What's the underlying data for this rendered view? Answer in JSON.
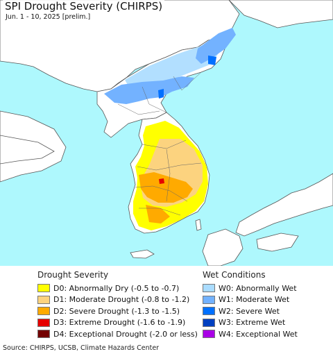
{
  "header": {
    "title": "SPI Drought Severity (CHIRPS)",
    "subtitle": "Jun. 1 - 10, 2025 [prelim.]"
  },
  "legend": {
    "drought": {
      "heading": "Drought Severity",
      "items": [
        {
          "label": "D0: Abnormally Dry (-0.5 to -0.7)",
          "color": "#ffff00"
        },
        {
          "label": "D1: Moderate Drought (-0.8 to -1.2)",
          "color": "#fcd37f"
        },
        {
          "label": "D2: Severe Drought (-1.3 to -1.5)",
          "color": "#ffaa00"
        },
        {
          "label": "D3: Extreme Drought (-1.6 to -1.9)",
          "color": "#e60000"
        },
        {
          "label": "D4: Exceptional Drought (-2.0 or less)",
          "color": "#730000"
        }
      ]
    },
    "wet": {
      "heading": "Wet Conditions",
      "items": [
        {
          "label": "W0: Abnormally Wet",
          "color": "#aadcff"
        },
        {
          "label": "W1: Moderate Wet",
          "color": "#73b2ff"
        },
        {
          "label": "W2: Severe Wet",
          "color": "#0070ff"
        },
        {
          "label": "W3: Extreme Wet",
          "color": "#0040c0"
        },
        {
          "label": "W4: Exceptional Wet",
          "color": "#a900e6"
        }
      ]
    }
  },
  "footer": {
    "source": "Source: CHIRPS, UCSB, Climate Hazards Center"
  },
  "map_colors": {
    "sea": "#aef8fd",
    "land": "#ffffff",
    "border": "#555555"
  }
}
